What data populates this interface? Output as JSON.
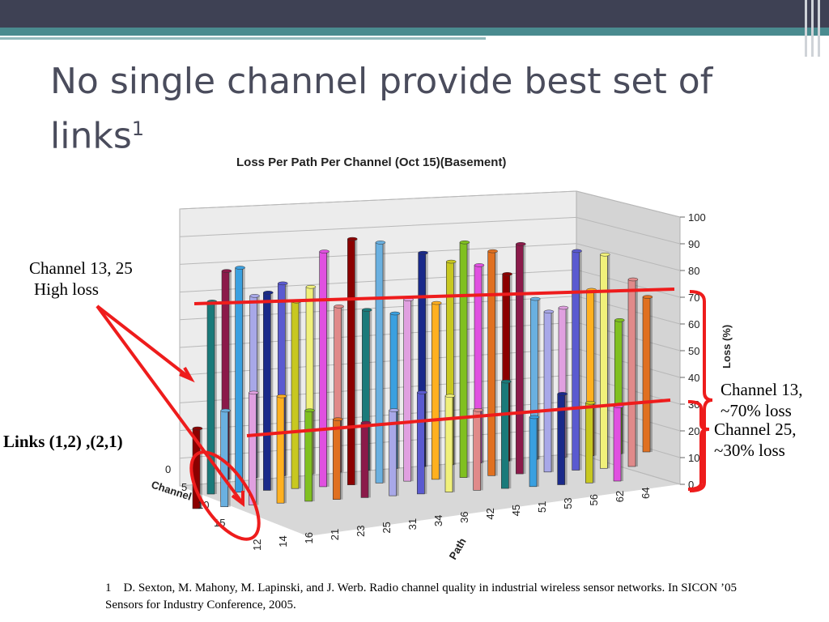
{
  "slide": {
    "title": "No single channel provide best set of links",
    "title_sup": "1"
  },
  "chart_data": {
    "type": "bar",
    "title": "Loss Per Path Per Channel (Oct 15)(Basement)",
    "xlabel": "Path",
    "ylabel": "Loss (%)",
    "zlabel": "Channel",
    "ylim": [
      0,
      100
    ],
    "y_ticks": [
      "0",
      "10",
      "20",
      "30",
      "40",
      "50",
      "60",
      "70",
      "80",
      "90",
      "100"
    ],
    "path_ticks": [
      "12",
      "14",
      "16",
      "21",
      "23",
      "25",
      "31",
      "34",
      "36",
      "42",
      "45",
      "51",
      "53",
      "56",
      "62",
      "64"
    ],
    "channel_ticks": [
      "0",
      "5",
      "10",
      "15"
    ],
    "series": [
      {
        "values": [
          78,
          68,
          72,
          70,
          62,
          60,
          58,
          80,
          76,
          74,
          70,
          60,
          56,
          62,
          50,
          58
        ]
      },
      {
        "values": [
          72,
          84,
          74,
          70,
          88,
          92,
          90,
          68,
          66,
          88,
          84,
          86,
          60,
          82,
          80,
          70
        ]
      },
      {
        "values": [
          30,
          36,
          42,
          40,
          34,
          30,
          28,
          32,
          38,
          36,
          30,
          40,
          26,
          34,
          30,
          28
        ]
      }
    ],
    "colors": [
      "#8b1a4a",
      "#a8a8e8",
      "#5a5ad0",
      "#f0f07a",
      "#e08a8a",
      "#1a7a7a",
      "#3aa0e0",
      "#1a2a8a",
      "#c8c820",
      "#e050e0",
      "#8b0000",
      "#6ab0e0",
      "#e0a0e0",
      "#ffb020",
      "#80c020",
      "#e07020"
    ],
    "grid": true,
    "annotations": [
      {
        "text": "Channel 13, 25",
        "text2": "High loss"
      },
      {
        "text": "Channel 13,",
        "text2": "~70% loss"
      },
      {
        "text": "Channel 25,",
        "text2": "~30% loss"
      },
      {
        "text": "Links (1,2) ,(2,1)"
      }
    ]
  },
  "footnote": {
    "marker": "1",
    "text": "D. Sexton, M. Mahony, M. Lapinski, and J. Werb. Radio channel quality in industrial wireless sensor networks. In SICON ’05 Sensors for Industry Conference, 2005."
  }
}
